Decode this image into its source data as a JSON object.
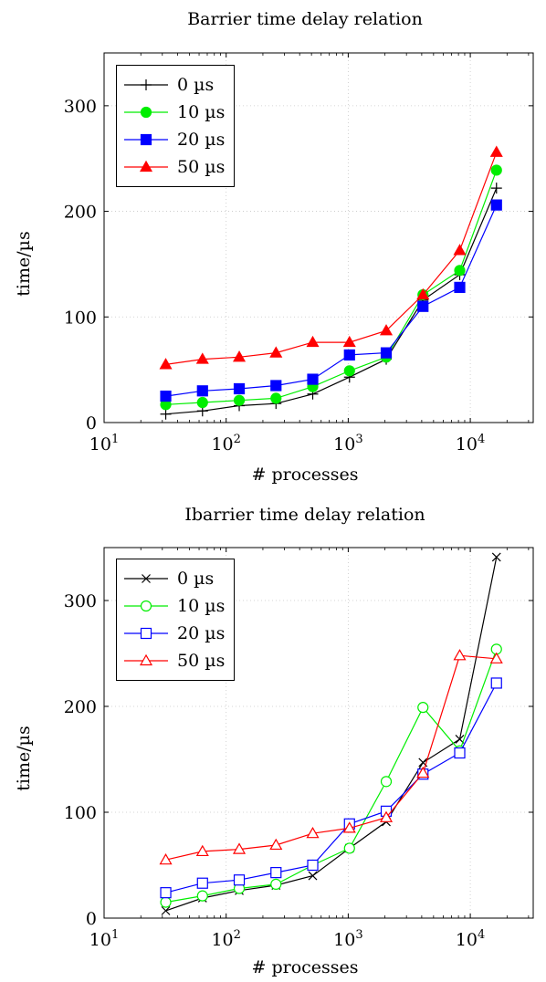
{
  "chart_data": [
    {
      "type": "line",
      "title": "Barrier time delay relation",
      "xlabel": "# processes",
      "ylabel": "time/µs",
      "xscale": "log",
      "xlim": [
        10,
        32768
      ],
      "ylim": [
        0,
        350
      ],
      "xticks": [
        10,
        100,
        1000,
        10000
      ],
      "xtick_labels": [
        {
          "base": "10",
          "exp": "1"
        },
        {
          "base": "10",
          "exp": "2"
        },
        {
          "base": "10",
          "exp": "3"
        },
        {
          "base": "10",
          "exp": "4"
        }
      ],
      "yticks": [
        0,
        100,
        200,
        300
      ],
      "ytick_labels": [
        "0",
        "100",
        "200",
        "300"
      ],
      "grid": true,
      "legend_position": "top-left",
      "x": [
        32,
        64,
        128,
        256,
        512,
        1024,
        2048,
        4096,
        8192,
        16384
      ],
      "series": [
        {
          "name": "0 µs",
          "color": "#000000",
          "marker": "plus",
          "filled": true,
          "values": [
            8,
            11,
            16,
            18,
            27,
            43,
            60,
            116,
            140,
            222
          ]
        },
        {
          "name": "10 µs",
          "color": "#00ee00",
          "marker": "circle",
          "filled": true,
          "values": [
            17,
            19,
            21,
            23,
            34,
            49,
            62,
            121,
            144,
            239
          ]
        },
        {
          "name": "20 µs",
          "color": "#0000ff",
          "marker": "square",
          "filled": true,
          "values": [
            25,
            30,
            32,
            35,
            41,
            64,
            66,
            110,
            128,
            206
          ]
        },
        {
          "name": "50 µs",
          "color": "#ff0000",
          "marker": "triangle",
          "filled": true,
          "values": [
            55,
            60,
            62,
            66,
            76,
            76,
            87,
            121,
            163,
            256
          ]
        }
      ]
    },
    {
      "type": "line",
      "title": "Ibarrier time delay relation",
      "xlabel": "# processes",
      "ylabel": "time/µs",
      "xscale": "log",
      "xlim": [
        10,
        32768
      ],
      "ylim": [
        0,
        350
      ],
      "xticks": [
        10,
        100,
        1000,
        10000
      ],
      "xtick_labels": [
        {
          "base": "10",
          "exp": "1"
        },
        {
          "base": "10",
          "exp": "2"
        },
        {
          "base": "10",
          "exp": "3"
        },
        {
          "base": "10",
          "exp": "4"
        }
      ],
      "yticks": [
        0,
        100,
        200,
        300
      ],
      "ytick_labels": [
        "0",
        "100",
        "200",
        "300"
      ],
      "grid": true,
      "legend_position": "top-left",
      "x": [
        32,
        64,
        128,
        256,
        512,
        1024,
        2048,
        4096,
        8192,
        16384
      ],
      "series": [
        {
          "name": "0 µs",
          "color": "#000000",
          "marker": "cross",
          "filled": false,
          "values": [
            7,
            19,
            26,
            31,
            40,
            66,
            91,
            147,
            169,
            341
          ]
        },
        {
          "name": "10 µs",
          "color": "#00ee00",
          "marker": "circle",
          "filled": false,
          "values": [
            15,
            21,
            28,
            32,
            50,
            66,
            129,
            199,
            158,
            254
          ]
        },
        {
          "name": "20 µs",
          "color": "#0000ff",
          "marker": "square",
          "filled": false,
          "values": [
            24,
            33,
            36,
            43,
            50,
            89,
            101,
            136,
            156,
            222
          ]
        },
        {
          "name": "50 µs",
          "color": "#ff0000",
          "marker": "triangle",
          "filled": false,
          "values": [
            55,
            63,
            65,
            69,
            80,
            85,
            95,
            137,
            248,
            245
          ]
        }
      ]
    }
  ]
}
